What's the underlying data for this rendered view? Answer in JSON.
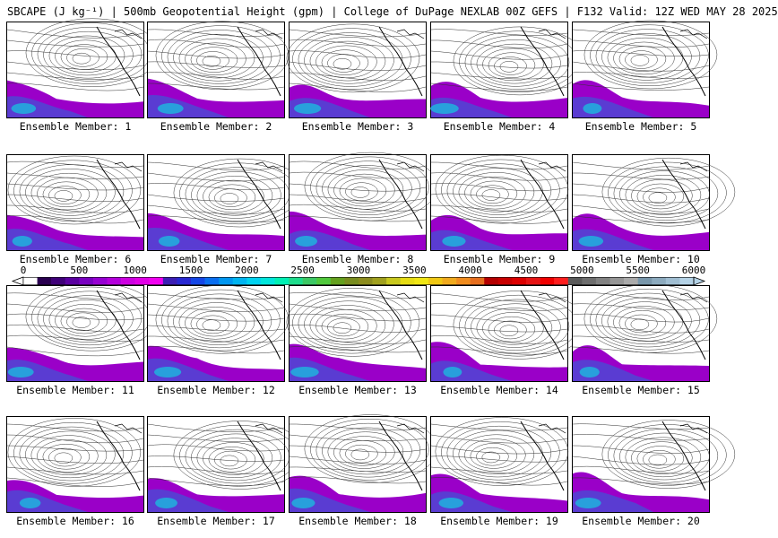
{
  "title": "SBCAPE (J kg⁻¹) | 500mb Geopotential Height (gpm) | College of DuPage NEXLAB 00Z GEFS | F132 Valid: 12Z WED MAY 28 2025",
  "member_prefix": "Ensemble Member: ",
  "members": [
    1,
    2,
    3,
    4,
    5,
    6,
    7,
    8,
    9,
    10,
    11,
    12,
    13,
    14,
    15,
    16,
    17,
    18,
    19,
    20
  ],
  "colorbar": {
    "ticks": [
      "0",
      "500",
      "1000",
      "1500",
      "2000",
      "2500",
      "3000",
      "3500",
      "4000",
      "4500",
      "5000",
      "5500",
      "6000"
    ],
    "colors": [
      "#ffffff",
      "#2a0050",
      "#3f0078",
      "#5a00a0",
      "#7800c0",
      "#9600d2",
      "#b400dc",
      "#cc00e0",
      "#e000e6",
      "#f000f0",
      "#3c1eb4",
      "#2828d2",
      "#1446e6",
      "#0a6ef0",
      "#0096f0",
      "#00b4f0",
      "#00d2f0",
      "#00e6dc",
      "#00f0b4",
      "#1edc8c",
      "#3cc864",
      "#50c83c",
      "#64a01e",
      "#788c1e",
      "#8c8c1e",
      "#a0a01e",
      "#c8c81e",
      "#e6dc14",
      "#f0e614",
      "#f0c814",
      "#f0aa1e",
      "#f08c1e",
      "#e66e1e",
      "#b40000",
      "#c80000",
      "#dc0000",
      "#e61414",
      "#f00000",
      "#ff1e1e",
      "#5a5a5a",
      "#6e6e6e",
      "#828282",
      "#969696",
      "#aaaaaa",
      "#7896aa",
      "#8caabe",
      "#a0bed2",
      "#b4d2e6"
    ]
  }
}
